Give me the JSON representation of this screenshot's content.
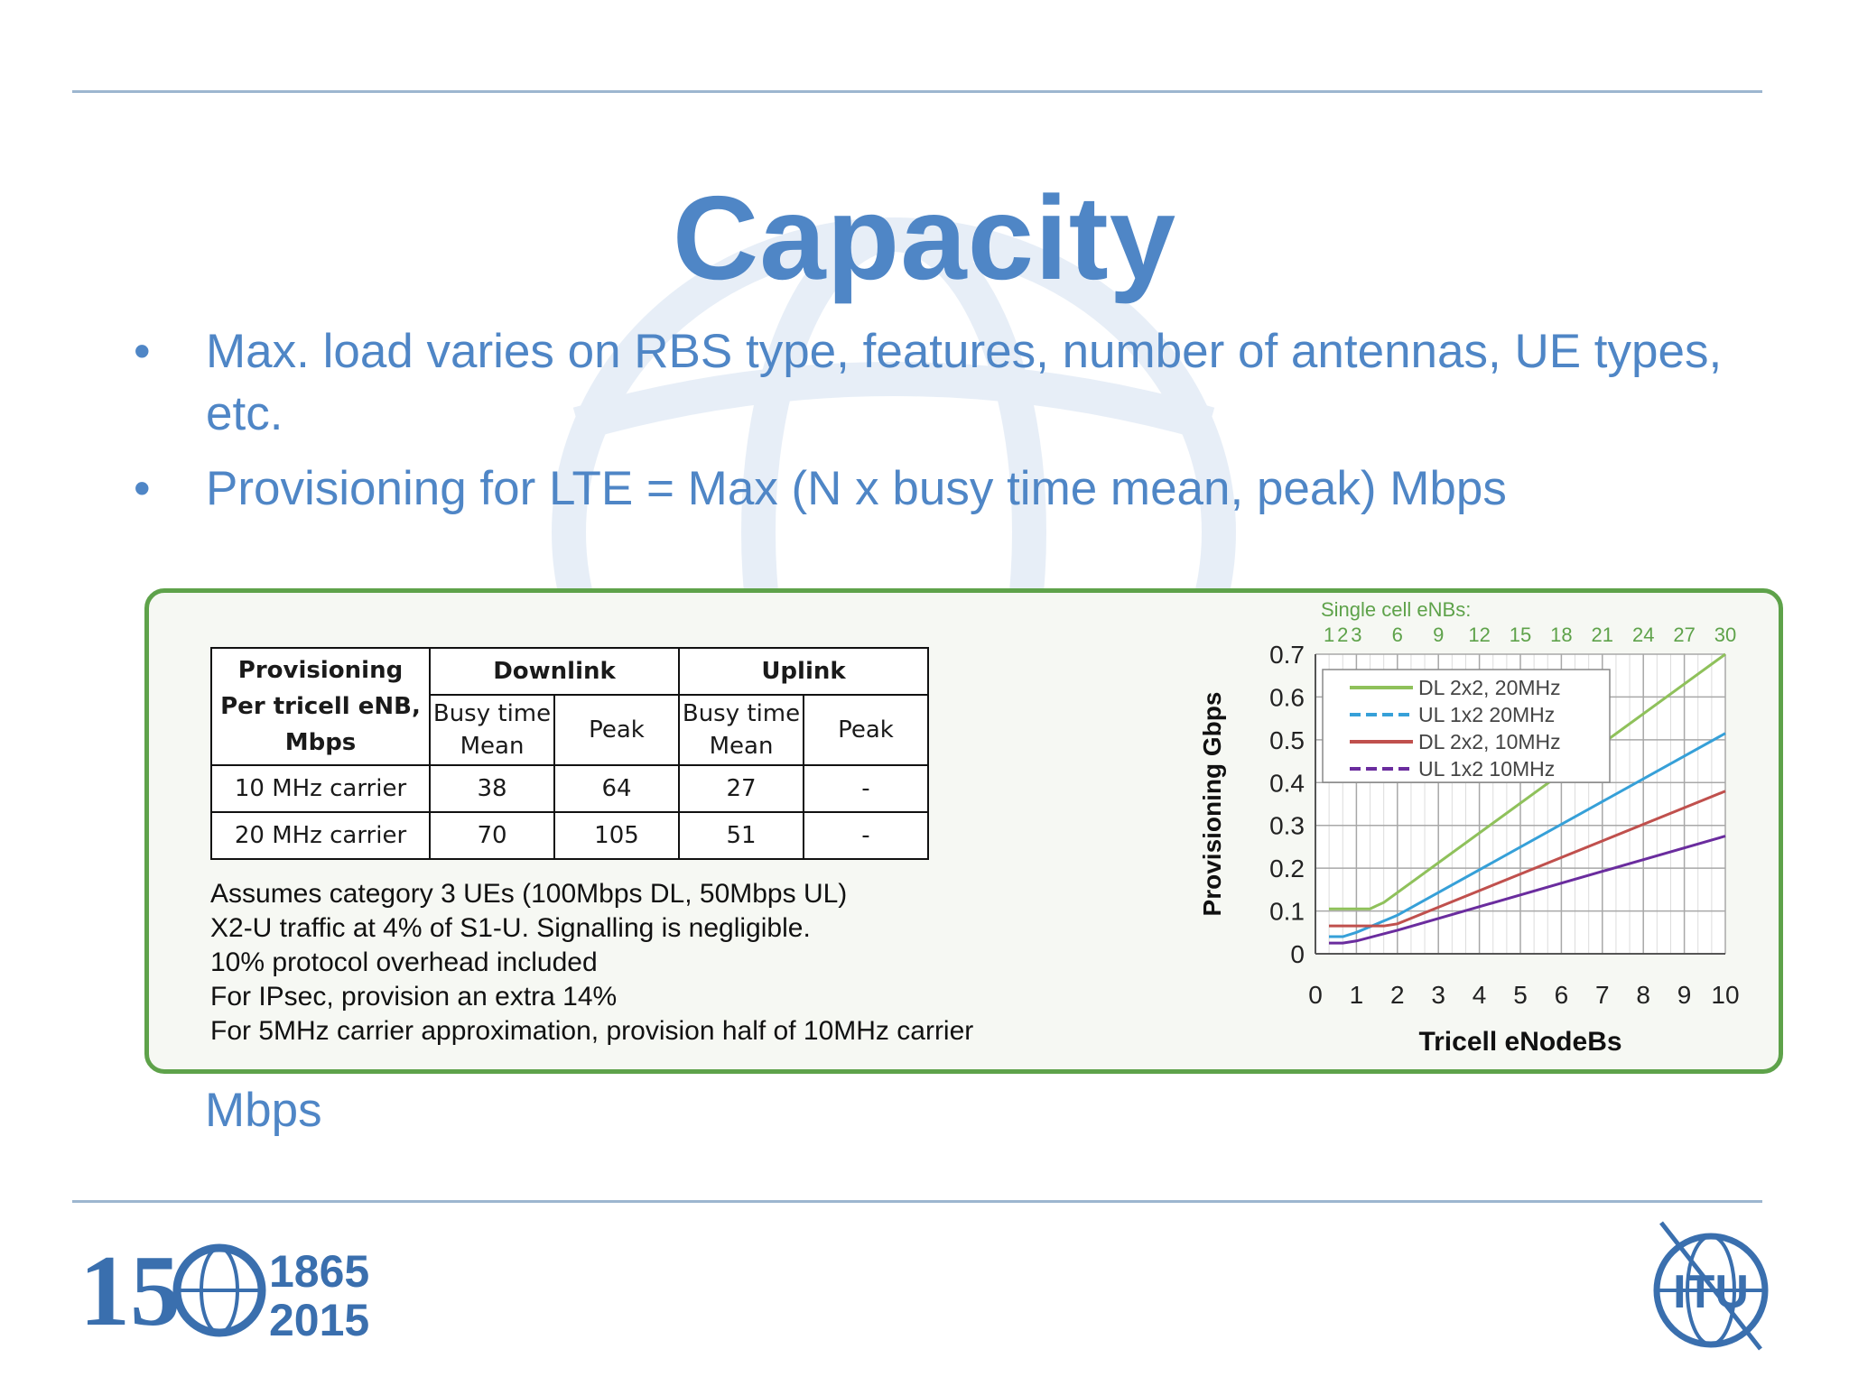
{
  "slide": {
    "title": "Capacity",
    "bullets": [
      "Max. load varies on RBS type, features, number of antennas, UE types, etc.",
      "Provisioning for LTE = Max (N x busy time mean, peak) Mbps"
    ],
    "bullet_marker": "•",
    "trailing_text": "Mbps"
  },
  "table": {
    "header_left": [
      "Provisioning",
      "Per tricell eNB,",
      "Mbps"
    ],
    "downlink": "Downlink",
    "uplink": "Uplink",
    "busy_time": [
      "Busy time",
      "Mean"
    ],
    "peak": "Peak",
    "rows": [
      {
        "label": "10 MHz carrier",
        "dl_mean": "38",
        "dl_peak": "64",
        "ul_mean": "27",
        "ul_peak": "-"
      },
      {
        "label": "20 MHz carrier",
        "dl_mean": "70",
        "dl_peak": "105",
        "ul_mean": "51",
        "ul_peak": "-"
      }
    ]
  },
  "notes": [
    "Assumes category 3 UEs (100Mbps DL, 50Mbps UL)",
    "X2-U traffic at 4% of S1-U. Signalling is negligible.",
    "10% protocol overhead included",
    "For IPsec, provision an extra 14%",
    "For 5MHz carrier approximation, provision half of 10MHz carrier"
  ],
  "chart_data": {
    "type": "line",
    "xlabel": "Tricell eNodeBs",
    "ylabel": "Provisioning Gbps",
    "xlim": [
      0,
      10
    ],
    "ylim": [
      0,
      0.7
    ],
    "x_ticks": [
      "0",
      "1",
      "2",
      "3",
      "4",
      "5",
      "6",
      "7",
      "8",
      "9",
      "10"
    ],
    "y_ticks": [
      "0",
      "0.1",
      "0.2",
      "0.3",
      "0.4",
      "0.5",
      "0.6",
      "0.7"
    ],
    "secondary_axis": {
      "label": "Single cell eNBs:",
      "ticks": [
        "1",
        "2",
        "3",
        "6",
        "9",
        "12",
        "15",
        "18",
        "21",
        "24",
        "27",
        "30"
      ]
    },
    "grid": true,
    "legend_position": "top-left",
    "series": [
      {
        "name": "DL 2x2, 20MHz",
        "color": "#8fc15b",
        "style": "solid",
        "x": [
          0.33,
          1.33,
          1.67,
          10
        ],
        "y": [
          0.105,
          0.105,
          0.12,
          0.7
        ]
      },
      {
        "name": "UL 1x2 20MHz",
        "color": "#36a0d8",
        "style": "dashed",
        "x": [
          0.33,
          0.67,
          1,
          2,
          10
        ],
        "y": [
          0.04,
          0.04,
          0.05,
          0.09,
          0.515
        ]
      },
      {
        "name": "DL 2x2, 10MHz",
        "color": "#c0504d",
        "style": "solid",
        "x": [
          0.33,
          1,
          1.67,
          2,
          10
        ],
        "y": [
          0.065,
          0.065,
          0.065,
          0.07,
          0.38
        ]
      },
      {
        "name": "UL 1x2 10MHz",
        "color": "#6a2c9e",
        "style": "dashed",
        "x": [
          0.33,
          0.67,
          1,
          2,
          10
        ],
        "y": [
          0.025,
          0.025,
          0.03,
          0.055,
          0.275
        ]
      }
    ]
  },
  "branding": {
    "anniversary_number": "15",
    "anniversary_years": [
      "1865",
      "2015"
    ],
    "logo_text": "ITU"
  }
}
